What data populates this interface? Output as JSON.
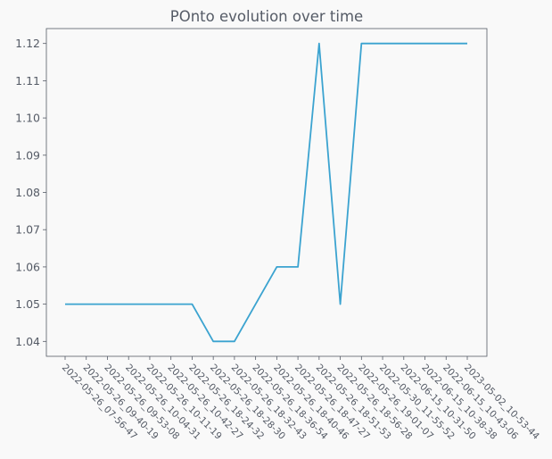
{
  "chart_data": {
    "type": "line",
    "title": "POnto evolution over time",
    "xlabel": "",
    "ylabel": "",
    "categories": [
      "2022-05-26_07-56-47",
      "2022-05-26_09-40-19",
      "2022-05-26_09-53-08",
      "2022-05-26_10-04-31",
      "2022-05-26_10-11-19",
      "2022-05-26_10-42-27",
      "2022-05-26_18-24-32",
      "2022-05-26_18-28-30",
      "2022-05-26_18-32-43",
      "2022-05-26_18-36-54",
      "2022-05-26_18-40-46",
      "2022-05-26_18-47-27",
      "2022-05-26_18-51-53",
      "2022-05-26_18-56-28",
      "2022-05-26_19-01-07",
      "2022-05-30_11-55-52",
      "2022-06-15_10-31-50",
      "2022-06-15_10-38-38",
      "2022-06-15_10-43-06",
      "2023-05-02_10-53-44"
    ],
    "series": [
      {
        "values": [
          1.05,
          1.05,
          1.05,
          1.05,
          1.05,
          1.05,
          1.05,
          1.04,
          1.04,
          1.05,
          1.06,
          1.06,
          1.12,
          1.05,
          1.12,
          1.12,
          1.12,
          1.12,
          1.12,
          1.12
        ]
      }
    ],
    "yticks": [
      "1.04",
      "1.05",
      "1.06",
      "1.07",
      "1.08",
      "1.09",
      "1.10",
      "1.11",
      "1.12"
    ],
    "ylim": [
      1.036,
      1.124
    ],
    "grid": false,
    "colors": {
      "line": "#3ba3d0",
      "axes": "#555b66",
      "background": "#f9f9f9"
    }
  }
}
